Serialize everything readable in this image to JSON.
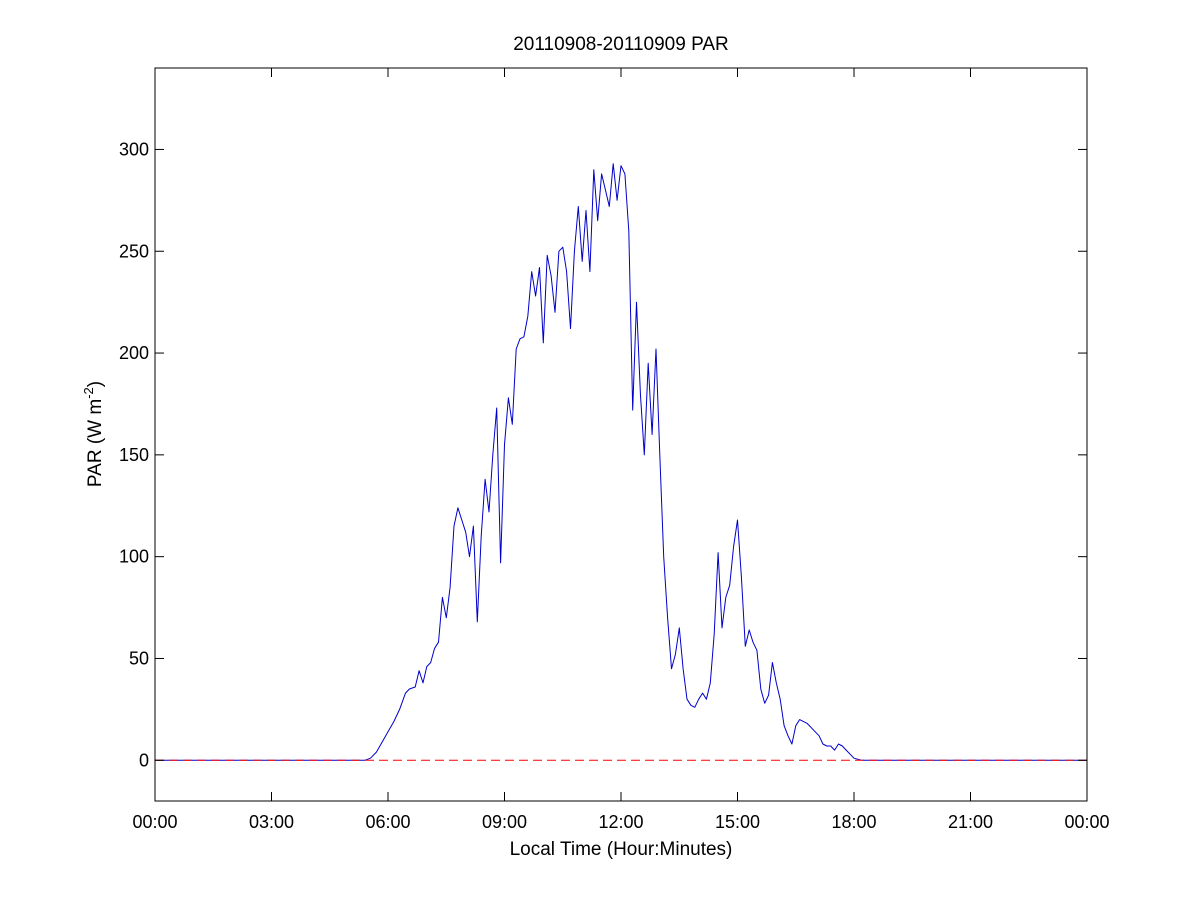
{
  "chart_data": {
    "type": "line",
    "title": "20110908-20110909 PAR",
    "xlabel": "Local Time (Hour:Minutes)",
    "ylabel": {
      "main": "PAR (W m",
      "superscript": "-2",
      "close": ")"
    },
    "xlim": [
      0,
      24
    ],
    "ylim": [
      -20,
      340
    ],
    "x_ticks": [
      0,
      3,
      6,
      9,
      12,
      15,
      18,
      21,
      24
    ],
    "x_tick_labels": [
      "00:00",
      "03:00",
      "06:00",
      "09:00",
      "12:00",
      "15:00",
      "18:00",
      "21:00",
      "00:00"
    ],
    "y_ticks": [
      0,
      50,
      100,
      150,
      200,
      250,
      300
    ],
    "y_tick_labels": [
      "0",
      "50",
      "100",
      "150",
      "200",
      "250",
      "300"
    ],
    "grid": false,
    "series": [
      {
        "color": "#0000cc",
        "style": "solid",
        "points": [
          [
            0.0,
            0
          ],
          [
            5.4,
            0
          ],
          [
            5.55,
            1
          ],
          [
            5.7,
            4
          ],
          [
            5.85,
            9
          ],
          [
            6.0,
            14
          ],
          [
            6.15,
            19
          ],
          [
            6.3,
            25
          ],
          [
            6.45,
            33
          ],
          [
            6.55,
            35
          ],
          [
            6.7,
            36
          ],
          [
            6.8,
            44
          ],
          [
            6.9,
            38
          ],
          [
            7.0,
            46
          ],
          [
            7.1,
            48
          ],
          [
            7.2,
            55
          ],
          [
            7.3,
            58
          ],
          [
            7.4,
            80
          ],
          [
            7.5,
            70
          ],
          [
            7.6,
            85
          ],
          [
            7.7,
            115
          ],
          [
            7.8,
            124
          ],
          [
            7.9,
            118
          ],
          [
            8.0,
            112
          ],
          [
            8.1,
            100
          ],
          [
            8.2,
            115
          ],
          [
            8.3,
            68
          ],
          [
            8.4,
            110
          ],
          [
            8.5,
            138
          ],
          [
            8.6,
            122
          ],
          [
            8.7,
            150
          ],
          [
            8.8,
            173
          ],
          [
            8.9,
            97
          ],
          [
            9.0,
            155
          ],
          [
            9.1,
            178
          ],
          [
            9.2,
            165
          ],
          [
            9.3,
            202
          ],
          [
            9.4,
            207
          ],
          [
            9.5,
            208
          ],
          [
            9.6,
            218
          ],
          [
            9.7,
            240
          ],
          [
            9.8,
            228
          ],
          [
            9.9,
            242
          ],
          [
            10.0,
            205
          ],
          [
            10.1,
            248
          ],
          [
            10.2,
            238
          ],
          [
            10.3,
            220
          ],
          [
            10.4,
            250
          ],
          [
            10.5,
            252
          ],
          [
            10.6,
            240
          ],
          [
            10.7,
            212
          ],
          [
            10.8,
            250
          ],
          [
            10.9,
            272
          ],
          [
            11.0,
            245
          ],
          [
            11.1,
            270
          ],
          [
            11.2,
            240
          ],
          [
            11.3,
            290
          ],
          [
            11.4,
            265
          ],
          [
            11.5,
            288
          ],
          [
            11.6,
            280
          ],
          [
            11.7,
            272
          ],
          [
            11.8,
            293
          ],
          [
            11.9,
            275
          ],
          [
            12.0,
            292
          ],
          [
            12.1,
            288
          ],
          [
            12.2,
            260
          ],
          [
            12.3,
            172
          ],
          [
            12.4,
            225
          ],
          [
            12.5,
            180
          ],
          [
            12.6,
            150
          ],
          [
            12.7,
            195
          ],
          [
            12.8,
            160
          ],
          [
            12.9,
            202
          ],
          [
            13.0,
            150
          ],
          [
            13.1,
            100
          ],
          [
            13.2,
            70
          ],
          [
            13.3,
            45
          ],
          [
            13.4,
            52
          ],
          [
            13.5,
            65
          ],
          [
            13.6,
            45
          ],
          [
            13.7,
            30
          ],
          [
            13.8,
            27
          ],
          [
            13.9,
            26
          ],
          [
            14.0,
            30
          ],
          [
            14.1,
            33
          ],
          [
            14.2,
            30
          ],
          [
            14.3,
            38
          ],
          [
            14.4,
            62
          ],
          [
            14.5,
            102
          ],
          [
            14.6,
            65
          ],
          [
            14.7,
            80
          ],
          [
            14.8,
            86
          ],
          [
            14.9,
            105
          ],
          [
            15.0,
            118
          ],
          [
            15.1,
            90
          ],
          [
            15.2,
            56
          ],
          [
            15.3,
            64
          ],
          [
            15.4,
            58
          ],
          [
            15.5,
            54
          ],
          [
            15.6,
            35
          ],
          [
            15.7,
            28
          ],
          [
            15.8,
            32
          ],
          [
            15.9,
            48
          ],
          [
            16.0,
            38
          ],
          [
            16.1,
            30
          ],
          [
            16.2,
            17
          ],
          [
            16.3,
            12
          ],
          [
            16.4,
            8
          ],
          [
            16.5,
            17
          ],
          [
            16.6,
            20
          ],
          [
            16.7,
            19
          ],
          [
            16.8,
            18
          ],
          [
            16.9,
            16
          ],
          [
            17.0,
            14
          ],
          [
            17.1,
            12
          ],
          [
            17.2,
            8
          ],
          [
            17.3,
            7
          ],
          [
            17.4,
            7
          ],
          [
            17.5,
            5
          ],
          [
            17.6,
            8
          ],
          [
            17.7,
            7
          ],
          [
            17.8,
            5
          ],
          [
            17.9,
            3
          ],
          [
            18.0,
            1
          ],
          [
            18.2,
            0
          ],
          [
            24.0,
            0
          ]
        ]
      },
      {
        "color": "#ff0000",
        "style": "dashed",
        "points": [
          [
            0,
            0
          ],
          [
            24,
            0
          ]
        ]
      }
    ]
  }
}
